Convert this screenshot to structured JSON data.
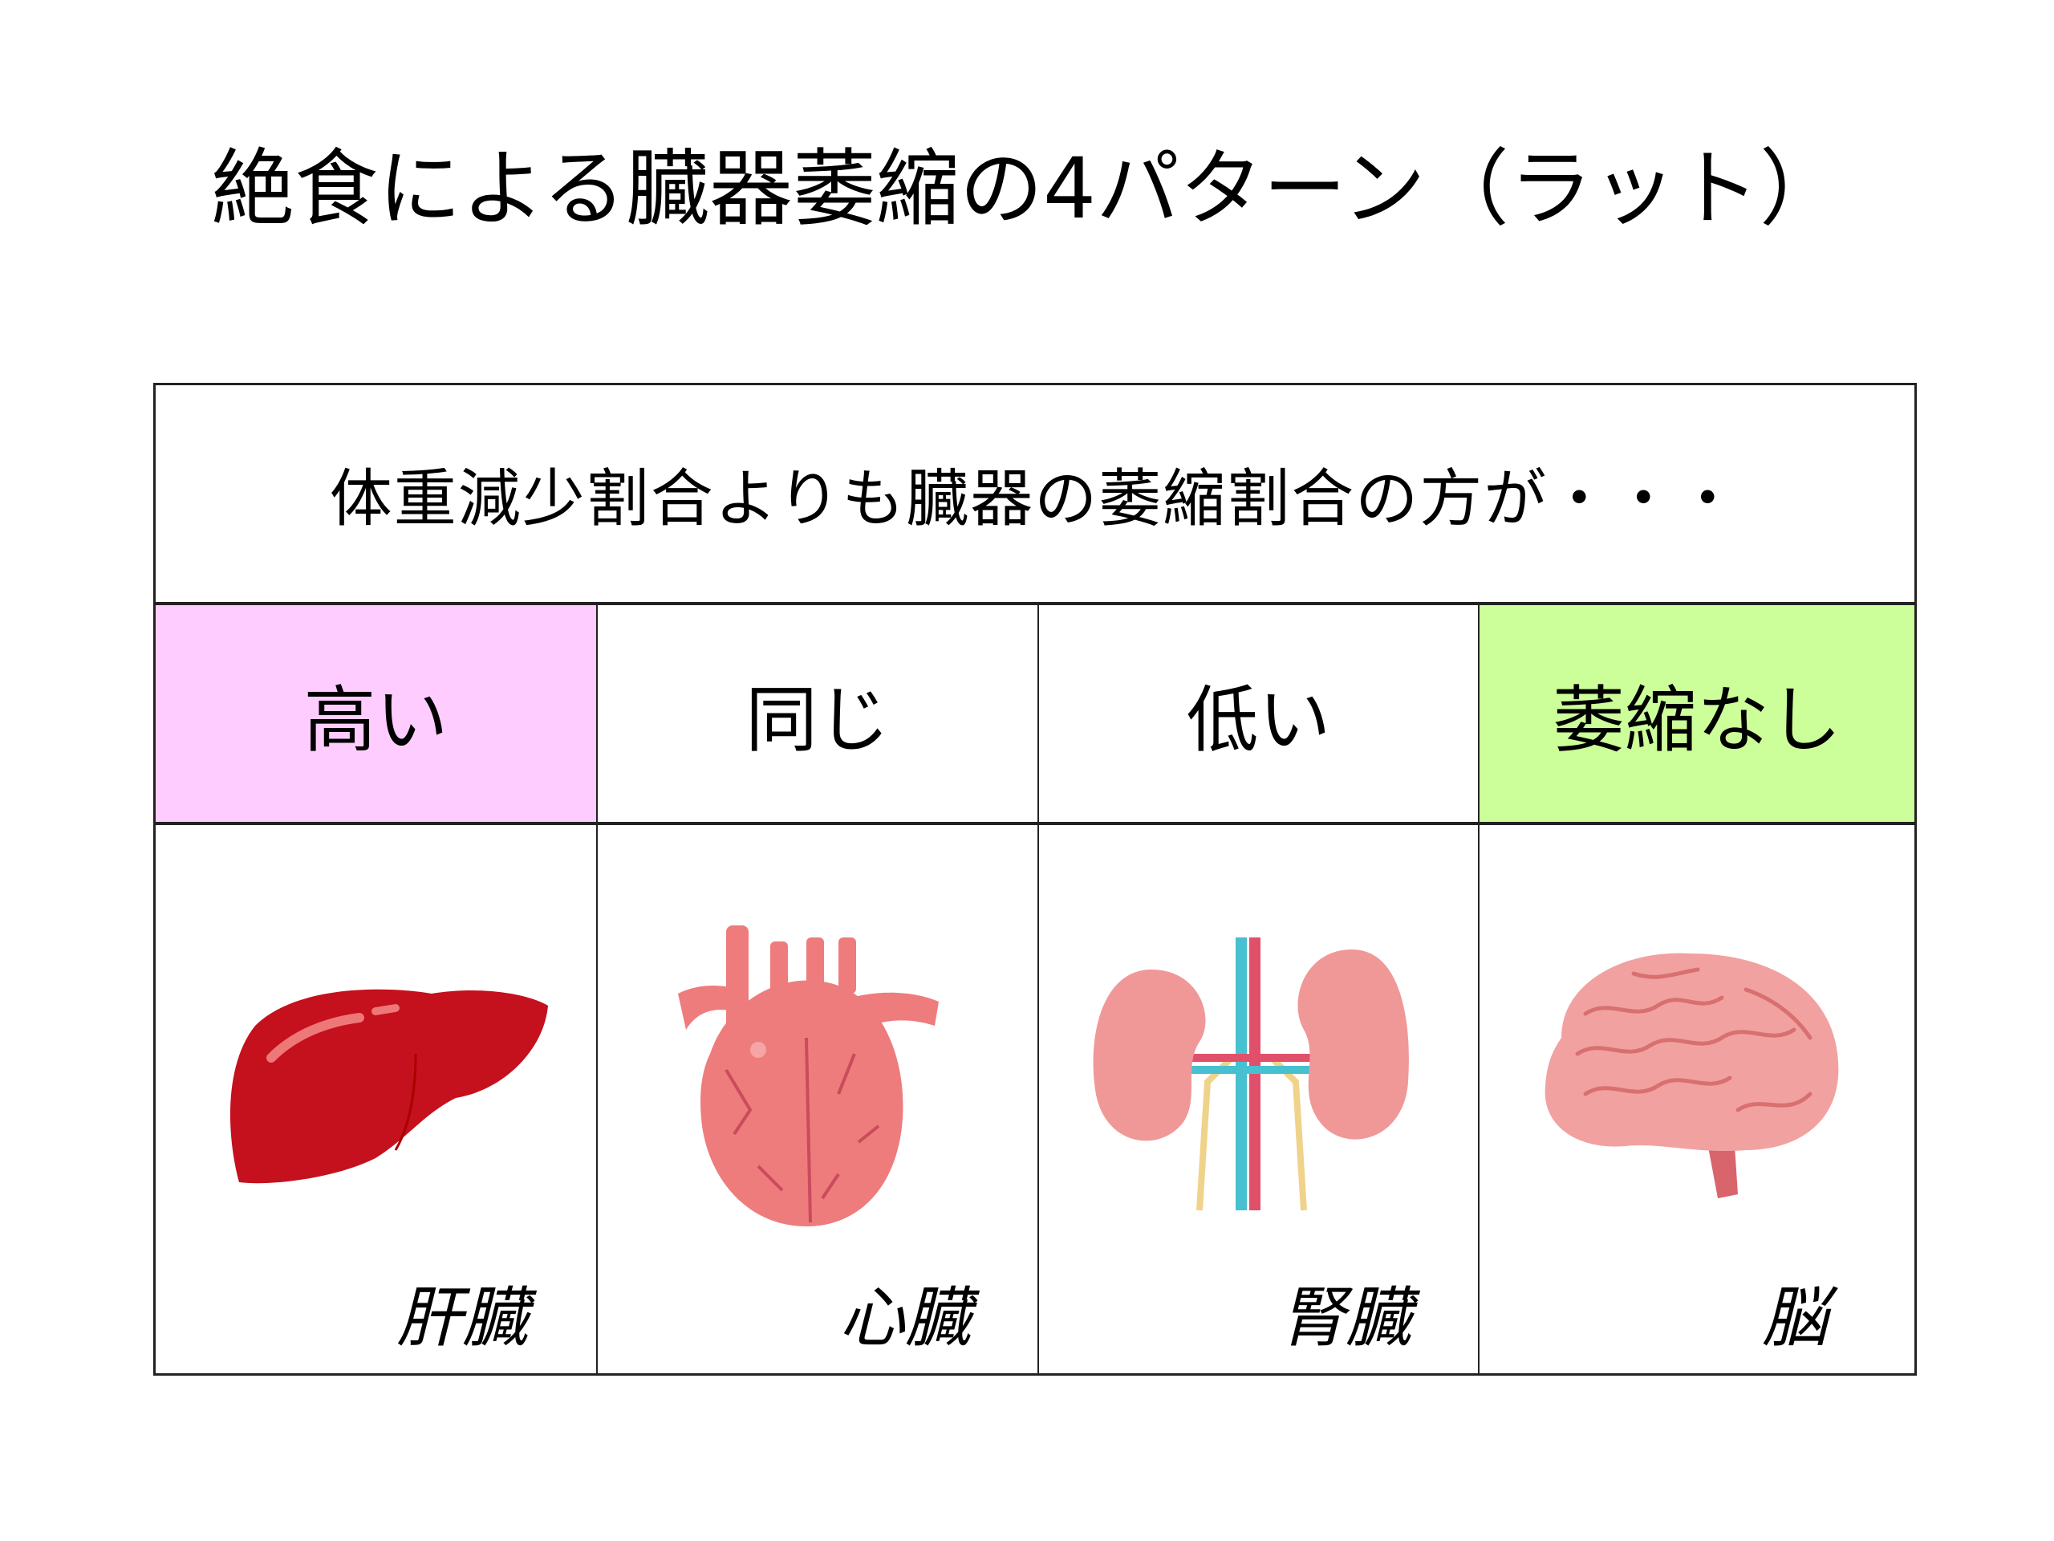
{
  "title": "絶食による臓器萎縮の4パターン（ラット）",
  "table": {
    "header": "体重減少割合よりも臓器の萎縮割合の方が・・・",
    "columns": [
      {
        "category": "高い",
        "organ": "肝臓",
        "organ_icon": "liver-icon",
        "color": "#FFCCFF"
      },
      {
        "category": "同じ",
        "organ": "心臓",
        "organ_icon": "heart-icon",
        "color": "#FFFFFF"
      },
      {
        "category": "低い",
        "organ": "腎臓",
        "organ_icon": "kidney-icon",
        "color": "#FFFFFF"
      },
      {
        "category": "萎縮なし",
        "organ": "脳",
        "organ_icon": "brain-icon",
        "color": "#CCFF99"
      }
    ]
  }
}
